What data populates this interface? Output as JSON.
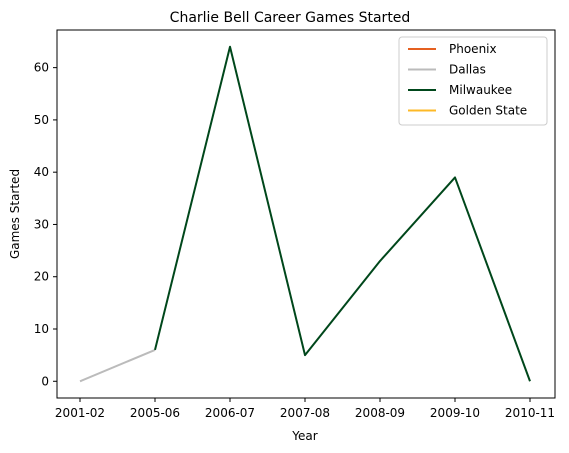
{
  "chart_data": {
    "type": "line",
    "title": "Charlie Bell  Career Games Started",
    "xlabel": "Year",
    "ylabel": "Games Started",
    "categories": [
      "2001-02",
      "2005-06",
      "2006-07",
      "2007-08",
      "2008-09",
      "2009-10",
      "2010-11"
    ],
    "ylim": [
      -3.2,
      67.2
    ],
    "yticks": [
      0,
      10,
      20,
      30,
      40,
      50,
      60
    ],
    "grid": false,
    "legend": "top-right",
    "series": [
      {
        "name": "Phoenix",
        "color": "#E56020",
        "values": [
          null,
          null,
          null,
          null,
          null,
          null,
          null
        ]
      },
      {
        "name": "Dallas",
        "color": "#BBBBBB",
        "values": [
          0,
          6,
          null,
          null,
          null,
          null,
          null
        ]
      },
      {
        "name": "Milwaukee",
        "color": "#00471B",
        "values": [
          null,
          6,
          64,
          5,
          23,
          39,
          0
        ]
      },
      {
        "name": "Golden State",
        "color": "#FDB927",
        "values": [
          null,
          null,
          null,
          null,
          null,
          null,
          null
        ]
      }
    ]
  }
}
